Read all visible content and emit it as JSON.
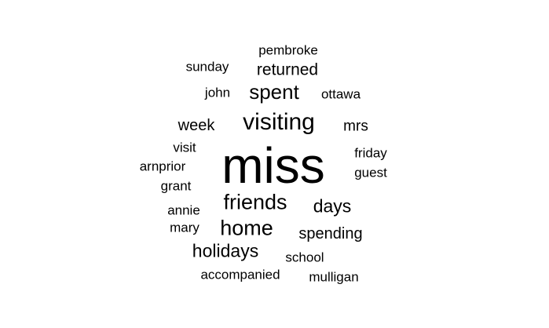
{
  "word_cloud": {
    "text_color": "#000000",
    "background_color": "#ffffff",
    "words": [
      {
        "id": "pembroke",
        "text": "pembroke"
      },
      {
        "id": "sunday",
        "text": "sunday"
      },
      {
        "id": "returned",
        "text": "returned"
      },
      {
        "id": "john",
        "text": "john"
      },
      {
        "id": "spent",
        "text": "spent"
      },
      {
        "id": "ottawa",
        "text": "ottawa"
      },
      {
        "id": "week",
        "text": "week"
      },
      {
        "id": "visiting",
        "text": "visiting"
      },
      {
        "id": "mrs",
        "text": "mrs"
      },
      {
        "id": "visit",
        "text": "visit"
      },
      {
        "id": "friday",
        "text": "friday"
      },
      {
        "id": "arnprior",
        "text": "arnprior"
      },
      {
        "id": "miss",
        "text": "miss"
      },
      {
        "id": "guest",
        "text": "guest"
      },
      {
        "id": "grant",
        "text": "grant"
      },
      {
        "id": "friends",
        "text": "friends"
      },
      {
        "id": "days",
        "text": "days"
      },
      {
        "id": "annie",
        "text": "annie"
      },
      {
        "id": "mary",
        "text": "mary"
      },
      {
        "id": "home",
        "text": "home"
      },
      {
        "id": "spending",
        "text": "spending"
      },
      {
        "id": "holidays",
        "text": "holidays"
      },
      {
        "id": "school",
        "text": "school"
      },
      {
        "id": "accompanied",
        "text": "accompanied"
      },
      {
        "id": "mulligan",
        "text": "mulligan"
      }
    ]
  }
}
